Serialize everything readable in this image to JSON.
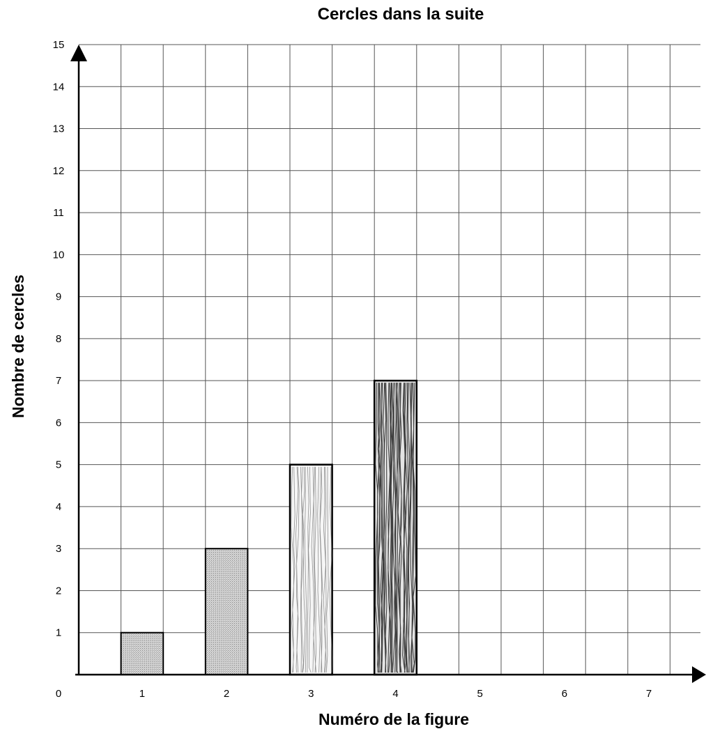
{
  "chart_data": {
    "type": "bar",
    "title": "Cercles dans la suite",
    "xlabel": "Numéro de la figure",
    "ylabel": "Nombre de cercles",
    "origin_label": "0",
    "categories": [
      "1",
      "2",
      "3",
      "4",
      "5",
      "6",
      "7"
    ],
    "values": [
      1,
      3,
      5,
      7,
      null,
      null,
      null
    ],
    "y_ticks": [
      "1",
      "2",
      "3",
      "4",
      "5",
      "6",
      "7",
      "8",
      "9",
      "10",
      "11",
      "12",
      "13",
      "14",
      "15"
    ],
    "ylim": [
      0,
      15
    ],
    "grid": true,
    "bar_styles": [
      "stippled",
      "stippled",
      "hand-shaded",
      "hand-shaded-dark"
    ]
  }
}
